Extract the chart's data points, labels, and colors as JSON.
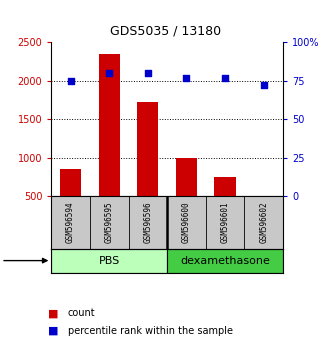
{
  "title": "GDS5035 / 13180",
  "samples": [
    "GSM596594",
    "GSM596595",
    "GSM596596",
    "GSM596600",
    "GSM596601",
    "GSM596602"
  ],
  "counts": [
    850,
    2350,
    1720,
    1000,
    750,
    500
  ],
  "percentiles": [
    75,
    80,
    80,
    77,
    77,
    72
  ],
  "bar_color": "#cc0000",
  "dot_color": "#0000cc",
  "left_ylim": [
    500,
    2500
  ],
  "left_yticks": [
    500,
    1000,
    1500,
    2000,
    2500
  ],
  "right_ylim": [
    0,
    100
  ],
  "right_yticks": [
    0,
    25,
    50,
    75,
    100
  ],
  "right_yticklabels": [
    "0",
    "25",
    "50",
    "75",
    "100%"
  ],
  "left_color": "#cc0000",
  "right_color": "#0000cc",
  "label_bg": "#c8c8c8",
  "pbs_color": "#bbffbb",
  "dex_color": "#44cc44",
  "legend_count": "count",
  "legend_pct": "percentile rank within the sample"
}
